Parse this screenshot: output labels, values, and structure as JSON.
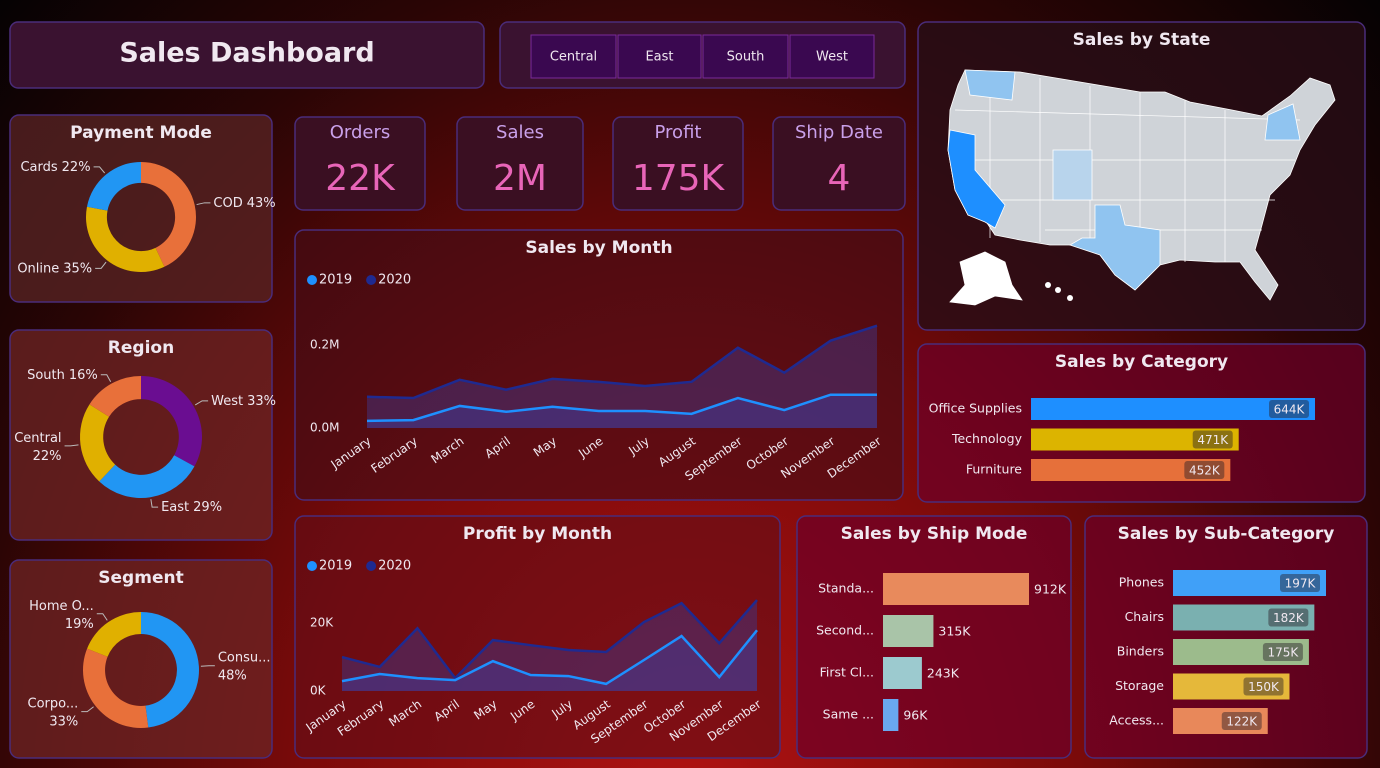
{
  "header": {
    "title": "Sales Dashboard"
  },
  "filters": [
    "Central",
    "East",
    "South",
    "West"
  ],
  "kpis": [
    {
      "label": "Orders",
      "value": "22K"
    },
    {
      "label": "Sales",
      "value": "2M"
    },
    {
      "label": "Profit",
      "value": "175K"
    },
    {
      "label": "Ship Date",
      "value": "4"
    }
  ],
  "chart_data": [
    {
      "type": "map",
      "title": "Sales by State"
    },
    {
      "type": "donut",
      "title": "Payment Mode",
      "categories": [
        "COD",
        "Online",
        "Cards"
      ],
      "values": [
        43,
        35,
        22
      ],
      "value_labels": [
        "43%",
        "35%",
        "22%"
      ],
      "colors": [
        "#e8703a",
        "#e0b000",
        "#2196f3"
      ]
    },
    {
      "type": "donut",
      "title": "Region",
      "categories": [
        "West",
        "East",
        "Central",
        "South"
      ],
      "values": [
        33,
        29,
        22,
        16
      ],
      "value_labels": [
        "33%",
        "29%",
        "22%",
        "16%"
      ],
      "colors": [
        "#6a0d91",
        "#2196f3",
        "#e0b000",
        "#e8703a"
      ]
    },
    {
      "type": "donut",
      "title": "Segment",
      "categories": [
        "Consu...",
        "Corpo...",
        "Home O..."
      ],
      "values": [
        48,
        33,
        19
      ],
      "value_labels": [
        "48%",
        "33%",
        "19%"
      ],
      "colors": [
        "#2196f3",
        "#e8703a",
        "#e0b000"
      ]
    },
    {
      "type": "area",
      "title": "Sales by Month",
      "categories": [
        "January",
        "February",
        "March",
        "April",
        "May",
        "June",
        "July",
        "August",
        "September",
        "October",
        "November",
        "December"
      ],
      "series": [
        {
          "name": "2019",
          "color": "#1e90ff",
          "values": [
            0.017,
            0.019,
            0.053,
            0.039,
            0.051,
            0.041,
            0.041,
            0.034,
            0.072,
            0.043,
            0.08,
            0.08
          ]
        },
        {
          "name": "2020",
          "color": "#1f2a90",
          "values": [
            0.075,
            0.072,
            0.116,
            0.092,
            0.118,
            0.111,
            0.101,
            0.111,
            0.193,
            0.133,
            0.21,
            0.246
          ]
        }
      ],
      "ylim": [
        0,
        0.25
      ],
      "yticks": [
        {
          "value": 0,
          "label": "0.0M"
        },
        {
          "value": 0.2,
          "label": "0.2M"
        }
      ]
    },
    {
      "type": "area",
      "title": "Profit by Month",
      "categories": [
        "January",
        "February",
        "March",
        "April",
        "May",
        "June",
        "July",
        "August",
        "September",
        "October",
        "November",
        "December"
      ],
      "series": [
        {
          "name": "2019",
          "color": "#1e90ff",
          "values": [
            2.9,
            5.0,
            3.8,
            3.2,
            8.8,
            4.7,
            4.4,
            2.1,
            9.1,
            16.2,
            4.1,
            17.9
          ]
        },
        {
          "name": "2020",
          "color": "#1f2a90",
          "values": [
            10.0,
            7.1,
            18.5,
            3.8,
            15.0,
            13.5,
            12.1,
            11.5,
            20.3,
            25.9,
            14.1,
            26.8
          ]
        }
      ],
      "ylim": [
        0,
        28
      ],
      "yticks": [
        {
          "value": 0,
          "label": "0K"
        },
        {
          "value": 20,
          "label": "20K"
        }
      ]
    },
    {
      "type": "bar",
      "orientation": "horizontal",
      "title": "Sales by Category",
      "categories": [
        "Office Supplies",
        "Technology",
        "Furniture"
      ],
      "values": [
        644,
        471,
        452
      ],
      "value_labels": [
        "644K",
        "471K",
        "452K"
      ],
      "colors": [
        "#1e8fff",
        "#dcb400",
        "#e6703a"
      ],
      "label_position": "inside"
    },
    {
      "type": "bar",
      "orientation": "horizontal",
      "title": "Sales by Ship Mode",
      "categories": [
        "Standa...",
        "Second...",
        "First Cl...",
        "Same ..."
      ],
      "values": [
        912,
        315,
        243,
        96
      ],
      "value_labels": [
        "912K",
        "315K",
        "243K",
        "96K"
      ],
      "colors": [
        "#e88a5c",
        "#a9c4a8",
        "#9ccacf",
        "#6aa8f0"
      ],
      "label_position": "outside"
    },
    {
      "type": "bar",
      "orientation": "horizontal",
      "title": "Sales by Sub-Category",
      "categories": [
        "Phones",
        "Chairs",
        "Binders",
        "Storage",
        "Access..."
      ],
      "values": [
        197,
        182,
        175,
        150,
        122
      ],
      "value_labels": [
        "197K",
        "182K",
        "175K",
        "150K",
        "122K"
      ],
      "colors": [
        "#40a0f8",
        "#7ab0b0",
        "#9cbb8c",
        "#e5b83a",
        "#e8885a"
      ],
      "label_position": "inside"
    }
  ]
}
